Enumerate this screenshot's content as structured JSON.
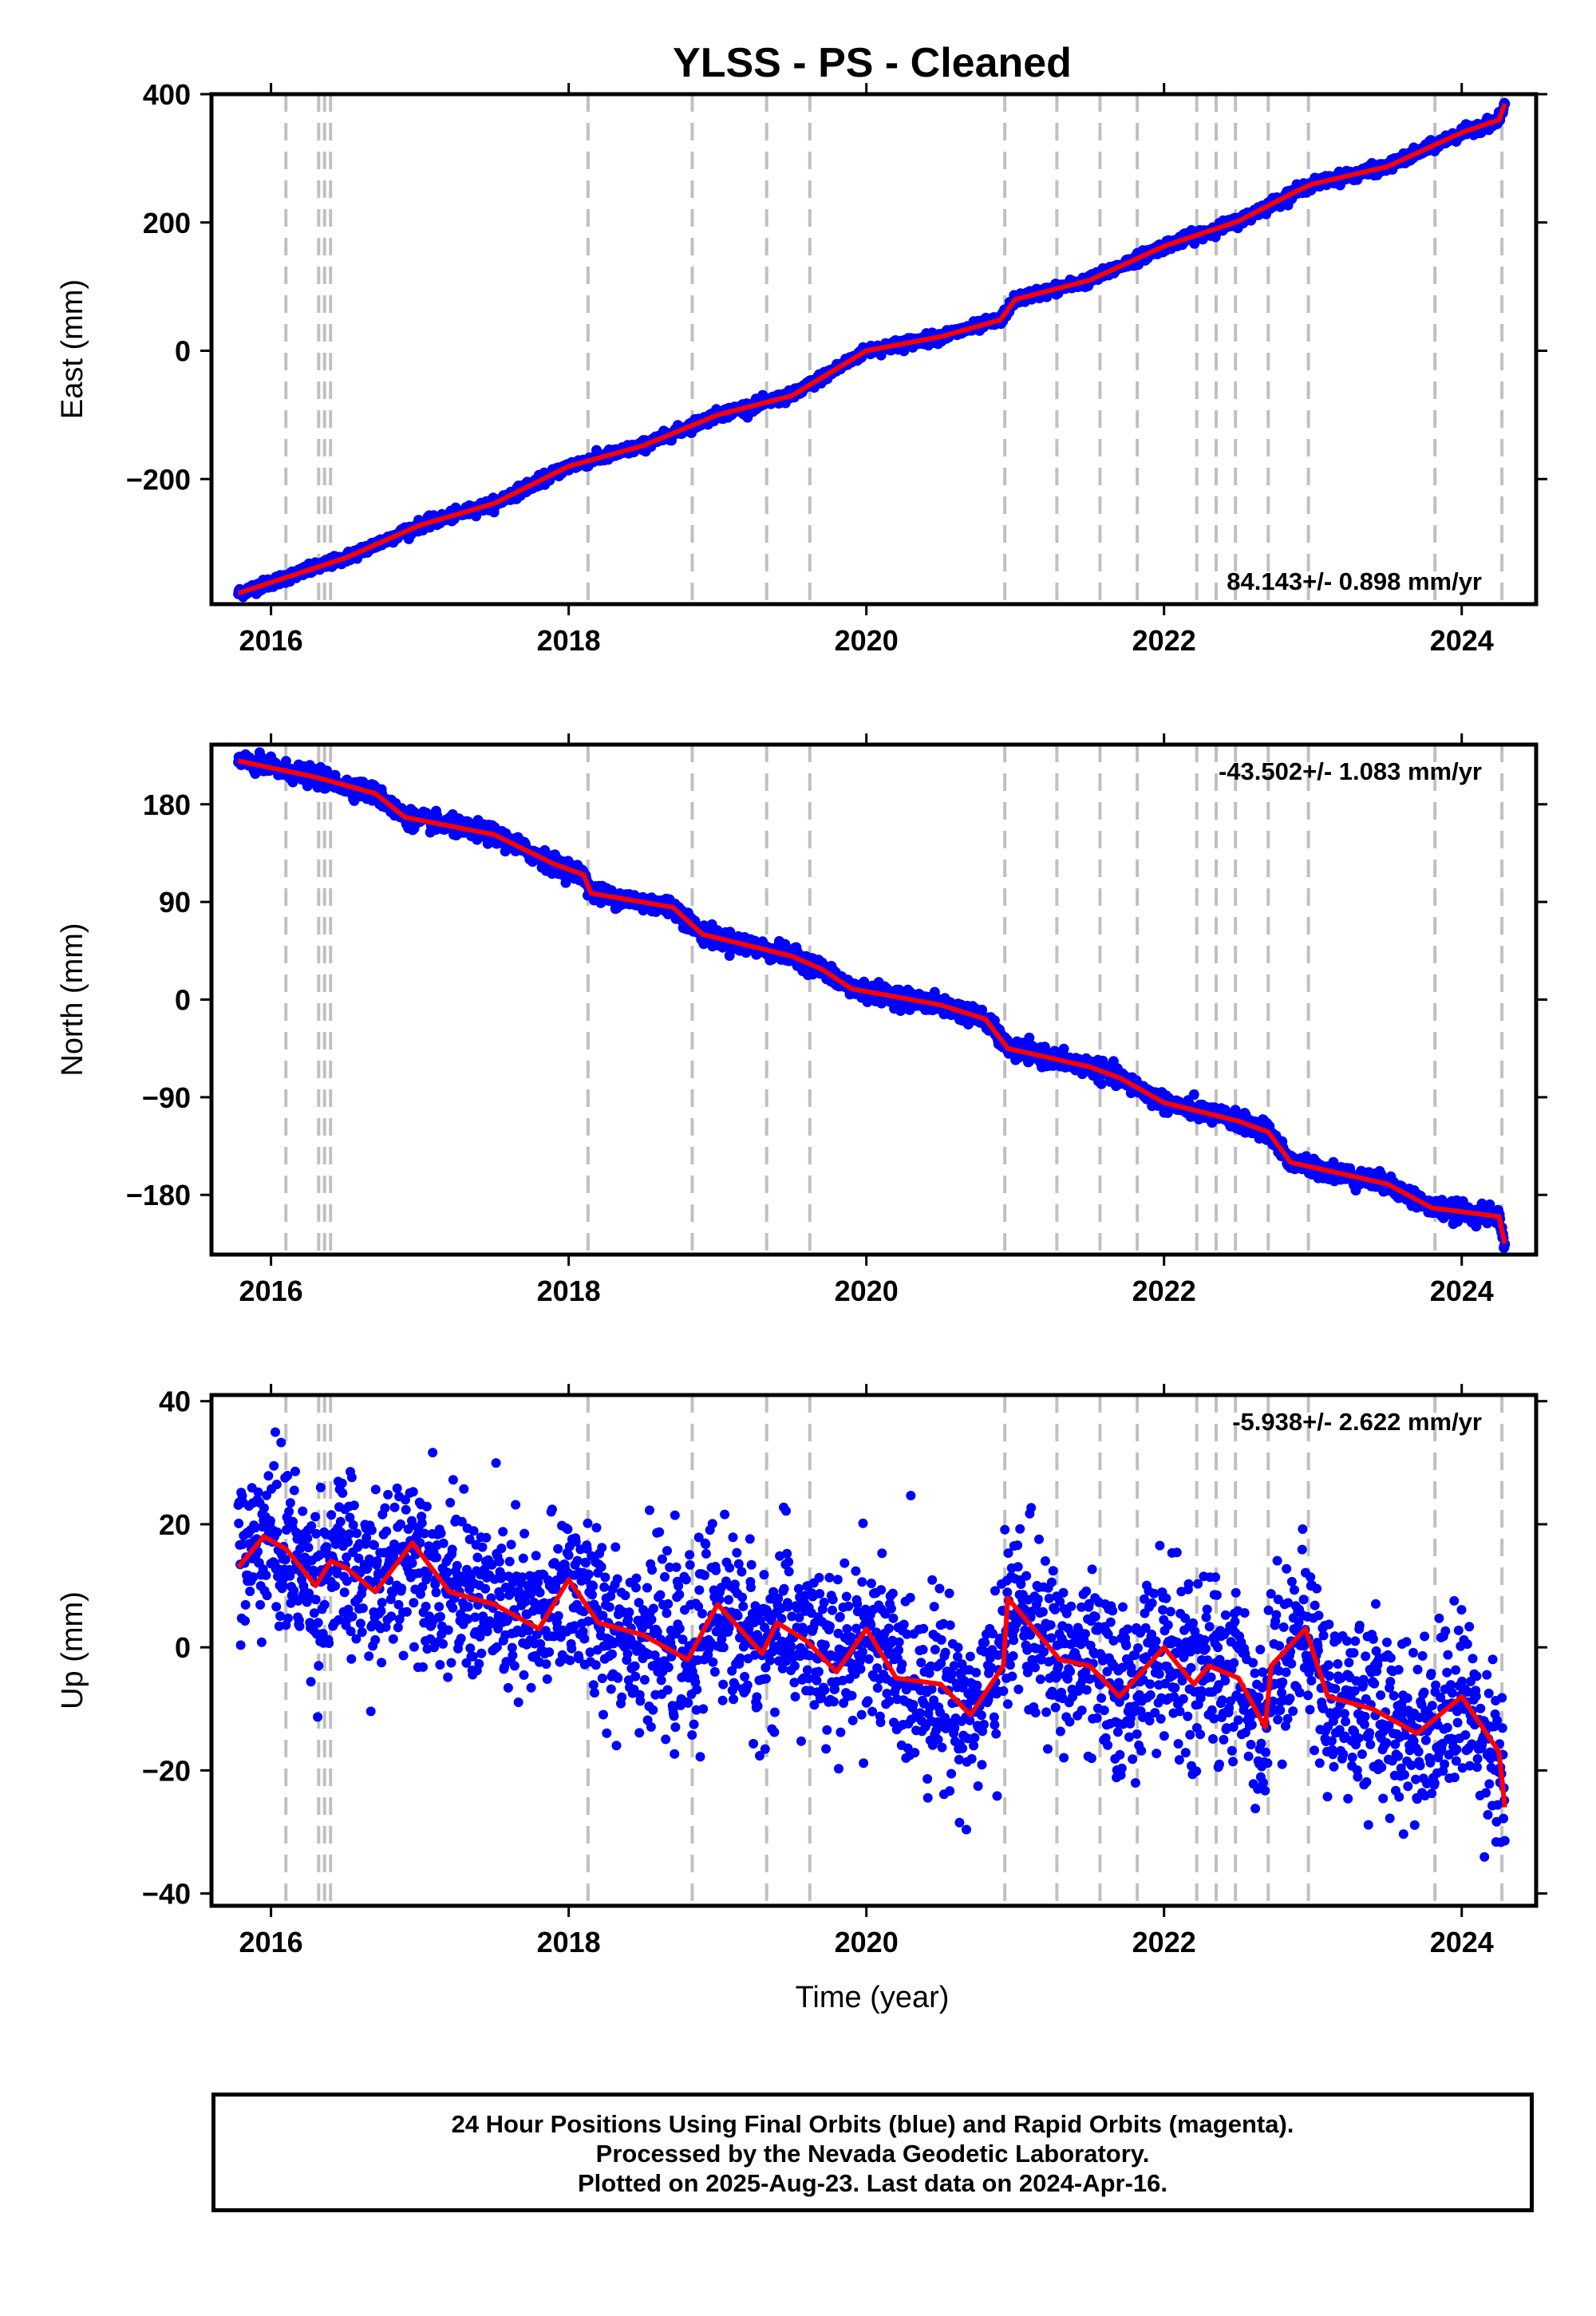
{
  "chart_data": [
    {
      "type": "scatter",
      "title": "YLSS  - PS - Cleaned",
      "ylabel": "East (mm)",
      "xlabel": "",
      "xlim": [
        2015.6,
        2024.5
      ],
      "ylim": [
        -395,
        400
      ],
      "x_ticks": [
        2016,
        2018,
        2020,
        2022,
        2024
      ],
      "y_ticks": [
        400,
        200,
        0,
        -200
      ],
      "y_tick_labels": [
        "400",
        "200",
        "0",
        "−200"
      ],
      "rate_label": "84.143+/- 0.898 mm/yr",
      "series_colors": {
        "data": "#0000ff",
        "model": "#ff0000",
        "event_lines": "#c0c0c0"
      },
      "event_lines": [
        2016.1,
        2016.32,
        2016.36,
        2016.4,
        2018.13,
        2018.83,
        2019.33,
        2019.62,
        2020.93,
        2021.28,
        2021.57,
        2021.82,
        2022.22,
        2022.35,
        2022.48,
        2022.7,
        2022.97,
        2023.82,
        2024.27
      ],
      "trend": [
        [
          2015.78,
          -378
        ],
        [
          2016.5,
          -323
        ],
        [
          2017.0,
          -272
        ],
        [
          2017.5,
          -238
        ],
        [
          2018.0,
          -180
        ],
        [
          2018.5,
          -148
        ],
        [
          2019.0,
          -100
        ],
        [
          2019.5,
          -70
        ],
        [
          2020.0,
          0
        ],
        [
          2020.5,
          22
        ],
        [
          2020.9,
          48
        ],
        [
          2021.0,
          80
        ],
        [
          2021.5,
          110
        ],
        [
          2022.0,
          163
        ],
        [
          2022.5,
          202
        ],
        [
          2022.9,
          250
        ],
        [
          2023.0,
          260
        ],
        [
          2023.5,
          287
        ],
        [
          2024.0,
          340
        ],
        [
          2024.25,
          360
        ],
        [
          2024.29,
          385
        ]
      ],
      "scatter_spread": 4
    },
    {
      "type": "scatter",
      "title": "",
      "ylabel": "North (mm)",
      "xlabel": "",
      "xlim": [
        2015.6,
        2024.5
      ],
      "ylim": [
        -235,
        235
      ],
      "x_ticks": [
        2016,
        2018,
        2020,
        2022,
        2024
      ],
      "y_ticks": [
        180,
        90,
        0,
        -90,
        -180
      ],
      "y_tick_labels": [
        "180",
        "90",
        "0",
        "−90",
        "−180"
      ],
      "rate_label": "-43.502+/- 1.083 mm/yr",
      "series_colors": {
        "data": "#0000ff",
        "model": "#ff0000",
        "event_lines": "#c0c0c0"
      },
      "event_lines": [
        2016.1,
        2016.32,
        2016.36,
        2016.4,
        2018.13,
        2018.83,
        2019.33,
        2019.62,
        2020.93,
        2021.28,
        2021.57,
        2021.82,
        2022.22,
        2022.35,
        2022.48,
        2022.7,
        2022.97,
        2023.82,
        2024.27
      ],
      "trend": [
        [
          2015.78,
          220
        ],
        [
          2016.3,
          205
        ],
        [
          2016.7,
          190
        ],
        [
          2016.9,
          168
        ],
        [
          2017.5,
          152
        ],
        [
          2017.9,
          125
        ],
        [
          2018.1,
          115
        ],
        [
          2018.15,
          98
        ],
        [
          2018.7,
          85
        ],
        [
          2018.9,
          60
        ],
        [
          2019.5,
          40
        ],
        [
          2019.7,
          28
        ],
        [
          2019.9,
          10
        ],
        [
          2020.5,
          -5
        ],
        [
          2020.8,
          -18
        ],
        [
          2020.95,
          -45
        ],
        [
          2021.5,
          -62
        ],
        [
          2021.7,
          -72
        ],
        [
          2022.0,
          -95
        ],
        [
          2022.5,
          -112
        ],
        [
          2022.7,
          -122
        ],
        [
          2022.85,
          -150
        ],
        [
          2023.5,
          -170
        ],
        [
          2023.8,
          -192
        ],
        [
          2024.25,
          -200
        ],
        [
          2024.29,
          -225
        ]
      ],
      "scatter_spread": 4
    },
    {
      "type": "scatter",
      "title": "",
      "ylabel": "Up (mm)",
      "xlabel": "Time (year)",
      "xlim": [
        2015.6,
        2024.5
      ],
      "ylim": [
        -42,
        41
      ],
      "x_ticks": [
        2016,
        2018,
        2020,
        2022,
        2024
      ],
      "y_ticks": [
        40,
        20,
        0,
        -20,
        -40
      ],
      "y_tick_labels": [
        "40",
        "20",
        "0",
        "−20",
        "−40"
      ],
      "rate_label": "-5.938+/- 2.622 mm/yr",
      "series_colors": {
        "data": "#0000ff",
        "model": "#ff0000",
        "event_lines": "#c0c0c0"
      },
      "event_lines": [
        2016.1,
        2016.32,
        2016.36,
        2016.4,
        2018.13,
        2018.83,
        2019.33,
        2019.62,
        2020.93,
        2021.28,
        2021.57,
        2021.82,
        2022.22,
        2022.35,
        2022.48,
        2022.7,
        2022.97,
        2023.82,
        2024.27
      ],
      "trend": [
        [
          2015.78,
          13
        ],
        [
          2015.95,
          18
        ],
        [
          2016.1,
          16
        ],
        [
          2016.3,
          10
        ],
        [
          2016.4,
          14
        ],
        [
          2016.5,
          13
        ],
        [
          2016.7,
          9
        ],
        [
          2016.95,
          17
        ],
        [
          2017.2,
          9
        ],
        [
          2017.5,
          7
        ],
        [
          2017.8,
          3
        ],
        [
          2018.0,
          11
        ],
        [
          2018.2,
          4
        ],
        [
          2018.5,
          2
        ],
        [
          2018.8,
          -2
        ],
        [
          2019.0,
          7
        ],
        [
          2019.3,
          -1
        ],
        [
          2019.4,
          4
        ],
        [
          2019.6,
          1
        ],
        [
          2019.8,
          -4
        ],
        [
          2020.0,
          3
        ],
        [
          2020.2,
          -5
        ],
        [
          2020.5,
          -6
        ],
        [
          2020.7,
          -11
        ],
        [
          2020.92,
          -3
        ],
        [
          2020.95,
          8
        ],
        [
          2021.3,
          -2
        ],
        [
          2021.5,
          -3
        ],
        [
          2021.7,
          -8
        ],
        [
          2022.0,
          0
        ],
        [
          2022.2,
          -6
        ],
        [
          2022.3,
          -3
        ],
        [
          2022.5,
          -5
        ],
        [
          2022.68,
          -13
        ],
        [
          2022.72,
          -3
        ],
        [
          2022.95,
          3
        ],
        [
          2023.1,
          -8
        ],
        [
          2023.4,
          -10
        ],
        [
          2023.7,
          -14
        ],
        [
          2024.0,
          -8
        ],
        [
          2024.25,
          -17
        ],
        [
          2024.29,
          -26
        ]
      ],
      "scatter_spread": 7
    }
  ],
  "footer": {
    "line1": "24 Hour Positions Using Final Orbits (blue) and Rapid Orbits (magenta).",
    "line2": "Processed by the Nevada Geodetic Laboratory.",
    "line3": "Plotted on 2025-Aug-23. Last data on 2024-Apr-16."
  }
}
